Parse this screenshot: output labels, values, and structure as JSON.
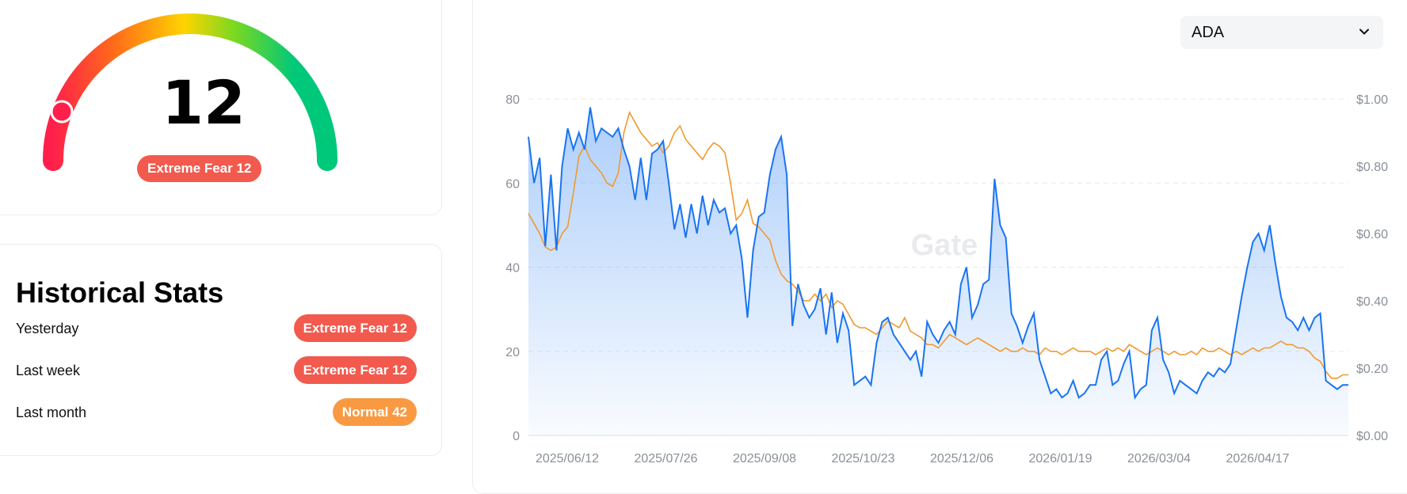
{
  "gauge": {
    "value": "12",
    "badge": "Extreme Fear 12",
    "colors": [
      "#ff1f4b",
      "#ff6a1a",
      "#ffd400",
      "#7cd820",
      "#00c87a"
    ]
  },
  "stats": {
    "title": "Historical Stats",
    "rows": [
      {
        "label": "Yesterday",
        "badge": "Extreme Fear 12",
        "tone": "fear"
      },
      {
        "label": "Last week",
        "badge": "Extreme Fear 12",
        "tone": "fear"
      },
      {
        "label": "Last month",
        "badge": "Normal 42",
        "tone": "normal"
      }
    ]
  },
  "selector": {
    "value": "ADA",
    "icon": "chevron-down-icon"
  },
  "watermark": "Gate",
  "colors": {
    "fear_line": "#1a74f2",
    "price_line": "#f0992f",
    "fear_badge": "#f25a4e",
    "normal_badge": "#f99a42"
  },
  "chart_data": {
    "type": "line",
    "x_tick_labels": [
      "2025/06/12",
      "2025/07/26",
      "2025/09/08",
      "2025/10/23",
      "2025/12/06",
      "2026/01/19",
      "2026/03/04",
      "2026/04/17"
    ],
    "y_left_ticks": [
      "0",
      "20",
      "40",
      "60",
      "80"
    ],
    "y_right_ticks": [
      "$0.00",
      "$0.20",
      "$0.40",
      "$0.60",
      "$0.80",
      "$1.00"
    ],
    "ylim_left": [
      0,
      80
    ],
    "ylim_right": [
      0,
      1.0
    ],
    "grid": true,
    "series": [
      {
        "axis": "left",
        "values": [
          71,
          60,
          66,
          45,
          62,
          44,
          64,
          73,
          68,
          72,
          68,
          78,
          70,
          73,
          72,
          71,
          73,
          68,
          64,
          56,
          66,
          56,
          67,
          68,
          70,
          60,
          49,
          55,
          47,
          55,
          48,
          57,
          50,
          56,
          53,
          54,
          48,
          50,
          42,
          28,
          44,
          52,
          53,
          62,
          68,
          71,
          62,
          26,
          36,
          31,
          28,
          30,
          35,
          24,
          34,
          22,
          29,
          25,
          12,
          13,
          14,
          12,
          22,
          27,
          28,
          24,
          22,
          20,
          18,
          20,
          14,
          27,
          24,
          22,
          25,
          27,
          24,
          36,
          40,
          28,
          31,
          36,
          37,
          61,
          50,
          47,
          29,
          26,
          22,
          26,
          29,
          18,
          14,
          10,
          11,
          9,
          10,
          13,
          9,
          10,
          12,
          12,
          18,
          20,
          12,
          13,
          17,
          20,
          9,
          11,
          12,
          25,
          28,
          18,
          15,
          10,
          13,
          12,
          11,
          10,
          13,
          15,
          14,
          16,
          15,
          17,
          25,
          33,
          40,
          46,
          48,
          44,
          50,
          41,
          33,
          28,
          27,
          25,
          28,
          25,
          28,
          29,
          13,
          12,
          11,
          12,
          12
        ]
      },
      {
        "axis": "right",
        "values": [
          0.66,
          0.63,
          0.6,
          0.56,
          0.55,
          0.56,
          0.6,
          0.62,
          0.72,
          0.83,
          0.86,
          0.82,
          0.8,
          0.78,
          0.75,
          0.74,
          0.78,
          0.9,
          0.96,
          0.93,
          0.9,
          0.88,
          0.86,
          0.87,
          0.84,
          0.86,
          0.9,
          0.92,
          0.88,
          0.86,
          0.84,
          0.82,
          0.85,
          0.87,
          0.86,
          0.84,
          0.75,
          0.64,
          0.66,
          0.7,
          0.63,
          0.62,
          0.6,
          0.58,
          0.52,
          0.48,
          0.46,
          0.45,
          0.43,
          0.4,
          0.4,
          0.42,
          0.4,
          0.42,
          0.38,
          0.4,
          0.39,
          0.36,
          0.33,
          0.32,
          0.32,
          0.31,
          0.3,
          0.32,
          0.34,
          0.33,
          0.32,
          0.35,
          0.31,
          0.3,
          0.29,
          0.27,
          0.27,
          0.26,
          0.28,
          0.3,
          0.29,
          0.28,
          0.27,
          0.28,
          0.29,
          0.28,
          0.27,
          0.26,
          0.25,
          0.26,
          0.25,
          0.25,
          0.26,
          0.25,
          0.25,
          0.24,
          0.26,
          0.25,
          0.25,
          0.24,
          0.25,
          0.26,
          0.25,
          0.25,
          0.25,
          0.24,
          0.25,
          0.26,
          0.25,
          0.26,
          0.25,
          0.27,
          0.26,
          0.25,
          0.24,
          0.25,
          0.26,
          0.25,
          0.24,
          0.25,
          0.24,
          0.24,
          0.25,
          0.24,
          0.26,
          0.25,
          0.25,
          0.26,
          0.25,
          0.24,
          0.25,
          0.24,
          0.25,
          0.26,
          0.25,
          0.26,
          0.26,
          0.27,
          0.28,
          0.27,
          0.27,
          0.26,
          0.26,
          0.25,
          0.23,
          0.22,
          0.19,
          0.17,
          0.17,
          0.18,
          0.18
        ]
      }
    ]
  }
}
